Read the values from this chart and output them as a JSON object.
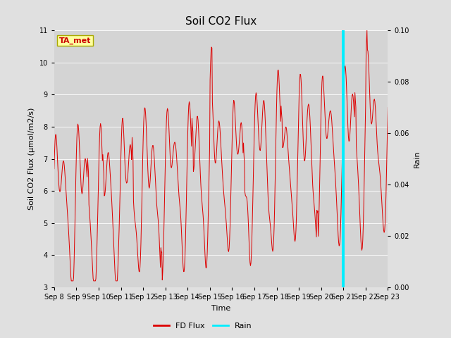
{
  "title": "Soil CO2 Flux",
  "ylabel_left": "Soil CO2 Flux (μmol/m2/s)",
  "ylabel_right": "Rain",
  "xlabel": "Time",
  "ylim_left": [
    3.0,
    11.0
  ],
  "ylim_right": [
    0.0,
    0.1
  ],
  "yticks_left": [
    3.0,
    4.0,
    5.0,
    6.0,
    7.0,
    8.0,
    9.0,
    10.0,
    11.0
  ],
  "yticks_right": [
    0.0,
    0.02,
    0.04,
    0.06,
    0.08,
    0.1
  ],
  "background_color": "#e0e0e0",
  "plot_bg_color": "#d4d4d4",
  "flux_color": "#dd0000",
  "rain_color": "#00eeff",
  "legend_label_flux": "FD Flux",
  "legend_label_rain": "Rain",
  "text_annotation": "TA_met",
  "text_color": "#cc0000",
  "text_bg": "#ffffa0",
  "text_edge": "#aaaa00",
  "title_fontsize": 11,
  "label_fontsize": 8,
  "tick_fontsize": 7,
  "seed": 42
}
